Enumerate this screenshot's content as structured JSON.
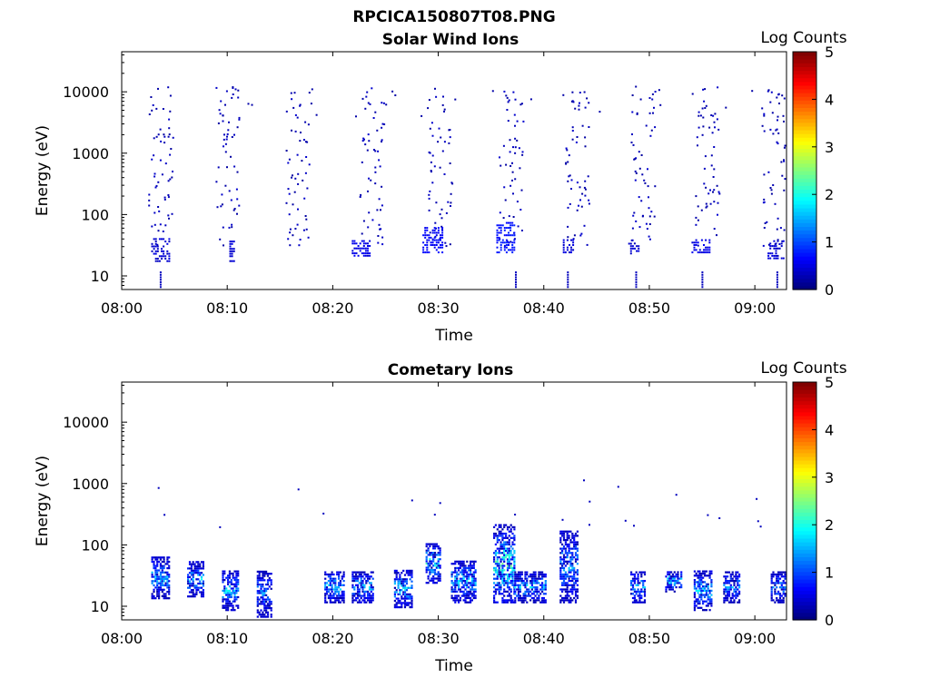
{
  "figure_title": "RPCICA150807T08.PNG",
  "chart_data": [
    {
      "type": "heatmap",
      "title": "Solar Wind Ions",
      "xlabel": "Time",
      "ylabel": "Energy (eV)",
      "x_ticks": [
        "08:00",
        "08:10",
        "08:20",
        "08:30",
        "08:40",
        "08:50",
        "09:00"
      ],
      "x_range_minutes": [
        0,
        63
      ],
      "y_scale": "log",
      "y_ticks": [
        "10",
        "100",
        "1000",
        "10000"
      ],
      "y_range_eV": [
        6,
        45000
      ],
      "colorbar": {
        "label": "Log Counts",
        "ticks": [
          "0",
          "1",
          "2",
          "3",
          "4",
          "5"
        ],
        "range": [
          0,
          5
        ],
        "colormap": "jet"
      },
      "bursts_minutes": [
        2.5,
        8.8,
        15.5,
        22.5,
        29,
        35.7,
        42,
        48.2,
        54.3,
        60.5
      ],
      "low_energy_blocks": [
        {
          "t0": 2.8,
          "t1": 4.5,
          "e0": 18,
          "e1": 45,
          "level": 0.3
        },
        {
          "t0": 10.2,
          "t1": 10.6,
          "e0": 18,
          "e1": 40,
          "level": 0.3
        },
        {
          "t0": 21.8,
          "t1": 23.5,
          "e0": 22,
          "e1": 40,
          "level": 0.4
        },
        {
          "t0": 28.5,
          "t1": 30.3,
          "e0": 25,
          "e1": 65,
          "level": 0.5
        },
        {
          "t0": 35.5,
          "t1": 37.3,
          "e0": 25,
          "e1": 80,
          "level": 0.6
        },
        {
          "t0": 41.8,
          "t1": 42.8,
          "e0": 25,
          "e1": 40,
          "level": 0.3
        },
        {
          "t0": 48.0,
          "t1": 49.0,
          "e0": 24,
          "e1": 36,
          "level": 0.3
        },
        {
          "t0": 54.0,
          "t1": 55.8,
          "e0": 25,
          "e1": 40,
          "level": 0.4
        },
        {
          "t0": 61.2,
          "t1": 62.8,
          "e0": 20,
          "e1": 40,
          "level": 0.3
        }
      ]
    },
    {
      "type": "heatmap",
      "title": "Cometary Ions",
      "xlabel": "Time",
      "ylabel": "Energy (eV)",
      "x_ticks": [
        "08:00",
        "08:10",
        "08:20",
        "08:30",
        "08:40",
        "08:50",
        "09:00"
      ],
      "x_range_minutes": [
        0,
        63
      ],
      "y_scale": "log",
      "y_ticks": [
        "10",
        "100",
        "1000",
        "10000"
      ],
      "y_range_eV": [
        6,
        45000
      ],
      "colorbar": {
        "label": "Log Counts",
        "ticks": [
          "0",
          "1",
          "2",
          "3",
          "4",
          "5"
        ],
        "range": [
          0,
          5
        ],
        "colormap": "jet"
      },
      "clusters": [
        {
          "t0": 2.8,
          "t1": 4.5,
          "e0": 14,
          "e1": 70,
          "peak": 1.7
        },
        {
          "t0": 6.2,
          "t1": 7.7,
          "e0": 15,
          "e1": 55,
          "peak": 1.8
        },
        {
          "t0": 9.5,
          "t1": 11.0,
          "e0": 9,
          "e1": 40,
          "peak": 1.8
        },
        {
          "t0": 12.8,
          "t1": 14.2,
          "e0": 7,
          "e1": 40,
          "peak": 1.5
        },
        {
          "t0": 19.2,
          "t1": 21.0,
          "e0": 12,
          "e1": 40,
          "peak": 1.9
        },
        {
          "t0": 21.8,
          "t1": 23.8,
          "e0": 12,
          "e1": 40,
          "peak": 1.8
        },
        {
          "t0": 25.8,
          "t1": 27.5,
          "e0": 10,
          "e1": 40,
          "peak": 2.0
        },
        {
          "t0": 28.8,
          "t1": 30.2,
          "e0": 25,
          "e1": 110,
          "peak": 2.2
        },
        {
          "t0": 31.2,
          "t1": 33.5,
          "e0": 12,
          "e1": 60,
          "peak": 1.9
        },
        {
          "t0": 35.2,
          "t1": 37.2,
          "e0": 12,
          "e1": 220,
          "peak": 2.6
        },
        {
          "t0": 37.2,
          "t1": 40.2,
          "e0": 12,
          "e1": 38,
          "peak": 1.9
        },
        {
          "t0": 41.5,
          "t1": 43.2,
          "e0": 12,
          "e1": 180,
          "peak": 1.7
        },
        {
          "t0": 48.2,
          "t1": 49.5,
          "e0": 12,
          "e1": 40,
          "peak": 1.6
        },
        {
          "t0": 51.5,
          "t1": 53.0,
          "e0": 18,
          "e1": 40,
          "peak": 2.0
        },
        {
          "t0": 54.2,
          "t1": 55.8,
          "e0": 9,
          "e1": 40,
          "peak": 1.8
        },
        {
          "t0": 57.0,
          "t1": 58.5,
          "e0": 12,
          "e1": 38,
          "peak": 1.6
        },
        {
          "t0": 61.5,
          "t1": 63.0,
          "e0": 12,
          "e1": 40,
          "peak": 1.5
        }
      ]
    }
  ]
}
